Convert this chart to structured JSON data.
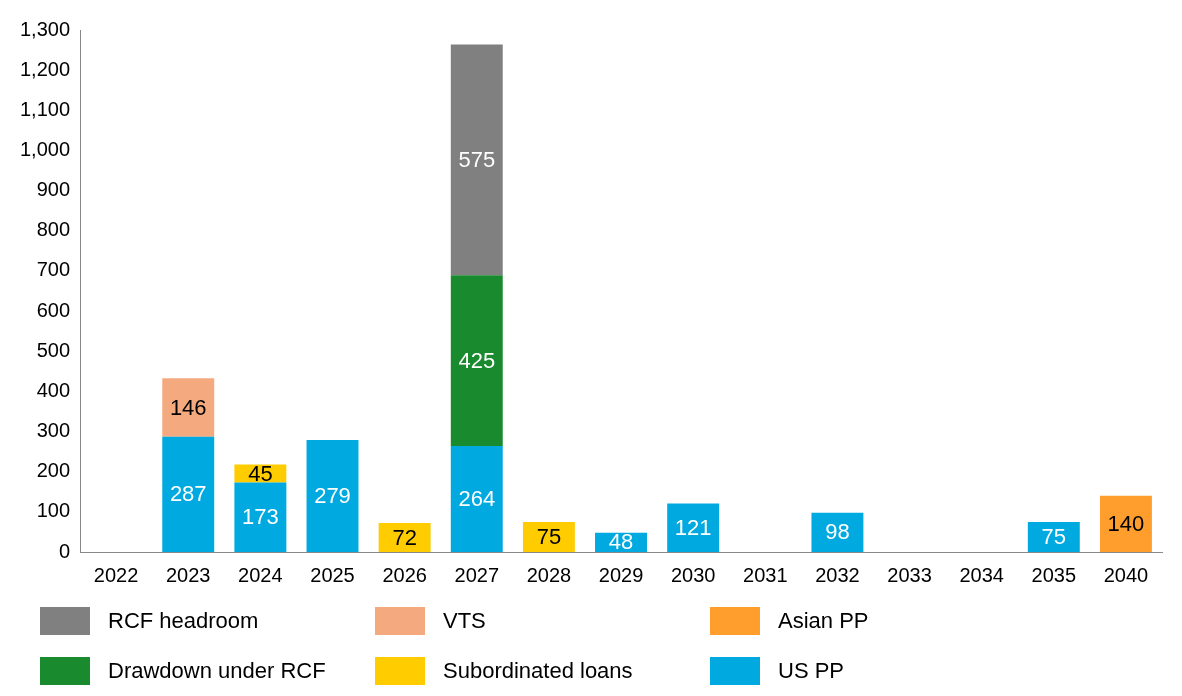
{
  "chart_data": {
    "type": "bar",
    "stacked": true,
    "data_labels": true,
    "legend": "bottom",
    "grid": false,
    "categories": [
      "2022",
      "2023",
      "2024",
      "2025",
      "2026",
      "2027",
      "2028",
      "2029",
      "2030",
      "2031",
      "2032",
      "2033",
      "2034",
      "2035",
      "2040"
    ],
    "ylim": [
      0,
      1300
    ],
    "yticks": [
      0,
      100,
      200,
      300,
      400,
      500,
      600,
      700,
      800,
      900,
      {
        "value": 1000,
        "label": "1,000"
      },
      {
        "value": 1100,
        "label": "1,100"
      },
      {
        "value": 1200,
        "label": "1,200"
      },
      {
        "value": 1300,
        "label": "1,300"
      }
    ],
    "series": [
      {
        "name": "US PP",
        "color": "#00a9e0",
        "values": [
          null,
          287,
          173,
          279,
          null,
          264,
          null,
          48,
          121,
          null,
          98,
          null,
          null,
          75,
          null
        ]
      },
      {
        "name": "Subordinated loans",
        "color": "#ffcc00",
        "values": [
          null,
          null,
          45,
          null,
          72,
          null,
          75,
          null,
          null,
          null,
          null,
          null,
          null,
          null,
          null
        ]
      },
      {
        "name": "Drawdown under RCF",
        "color": "#1a8a2e",
        "values": [
          null,
          null,
          null,
          null,
          null,
          425,
          null,
          null,
          null,
          null,
          null,
          null,
          null,
          null,
          null
        ]
      },
      {
        "name": "Asian PP",
        "color": "#ff9e2c",
        "values": [
          null,
          null,
          null,
          null,
          null,
          null,
          null,
          null,
          null,
          null,
          null,
          null,
          null,
          null,
          140
        ]
      },
      {
        "name": "VTS",
        "color": "#f4a97f",
        "values": [
          null,
          146,
          null,
          null,
          null,
          null,
          null,
          null,
          null,
          null,
          null,
          null,
          null,
          null,
          null
        ]
      },
      {
        "name": "RCF headroom",
        "color": "#808080",
        "values": [
          null,
          null,
          null,
          null,
          null,
          575,
          null,
          null,
          null,
          null,
          null,
          null,
          null,
          null,
          null
        ]
      }
    ]
  }
}
